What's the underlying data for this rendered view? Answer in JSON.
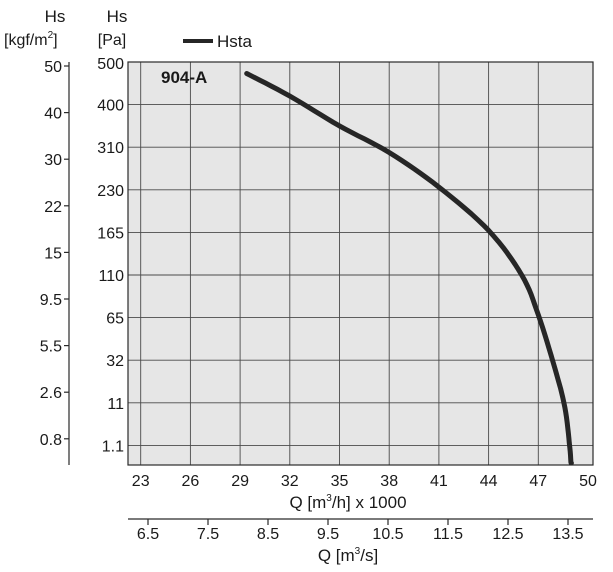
{
  "chart_data": {
    "type": "line",
    "model_label": "904-A",
    "legend": {
      "entries": [
        "Hsta"
      ],
      "placement": "top"
    },
    "left_axis_kgf": {
      "title_line1": "Hs",
      "title_line2": "[kgf/m",
      "title_sup": "2",
      "title_close": "]",
      "ticks": [
        "50",
        "40",
        "30",
        "22",
        "15",
        "9.5",
        "5.5",
        "2.6",
        "0.8"
      ]
    },
    "left_axis_pa": {
      "title_line1": "Hs",
      "title_line2": "[Pa]",
      "ticks": [
        "500",
        "400",
        "310",
        "230",
        "165",
        "110",
        "65",
        "32",
        "11",
        "1.1"
      ]
    },
    "x_axis_m3h": {
      "label_pre": "Q [m",
      "label_sup": "3",
      "label_post": "/h] x 1000",
      "ticks": [
        "23",
        "26",
        "29",
        "32",
        "35",
        "38",
        "41",
        "44",
        "47",
        "50"
      ]
    },
    "x_axis_m3s": {
      "label_pre": "Q [m",
      "label_sup": "3",
      "label_post": "/s]",
      "ticks": [
        "6.5",
        "7.5",
        "8.5",
        "9.5",
        "10.5",
        "11.5",
        "12.5",
        "13.5"
      ]
    },
    "grid": true,
    "series": [
      {
        "name": "Hsta",
        "color": "#262626",
        "x": [
          29.4,
          32,
          35,
          38,
          41,
          44,
          46,
          47,
          48,
          48.6,
          48.9,
          49.0
        ],
        "y": [
          473,
          420,
          355,
          300,
          235,
          168,
          110,
          68,
          28,
          10,
          0.5,
          -7
        ]
      }
    ]
  }
}
